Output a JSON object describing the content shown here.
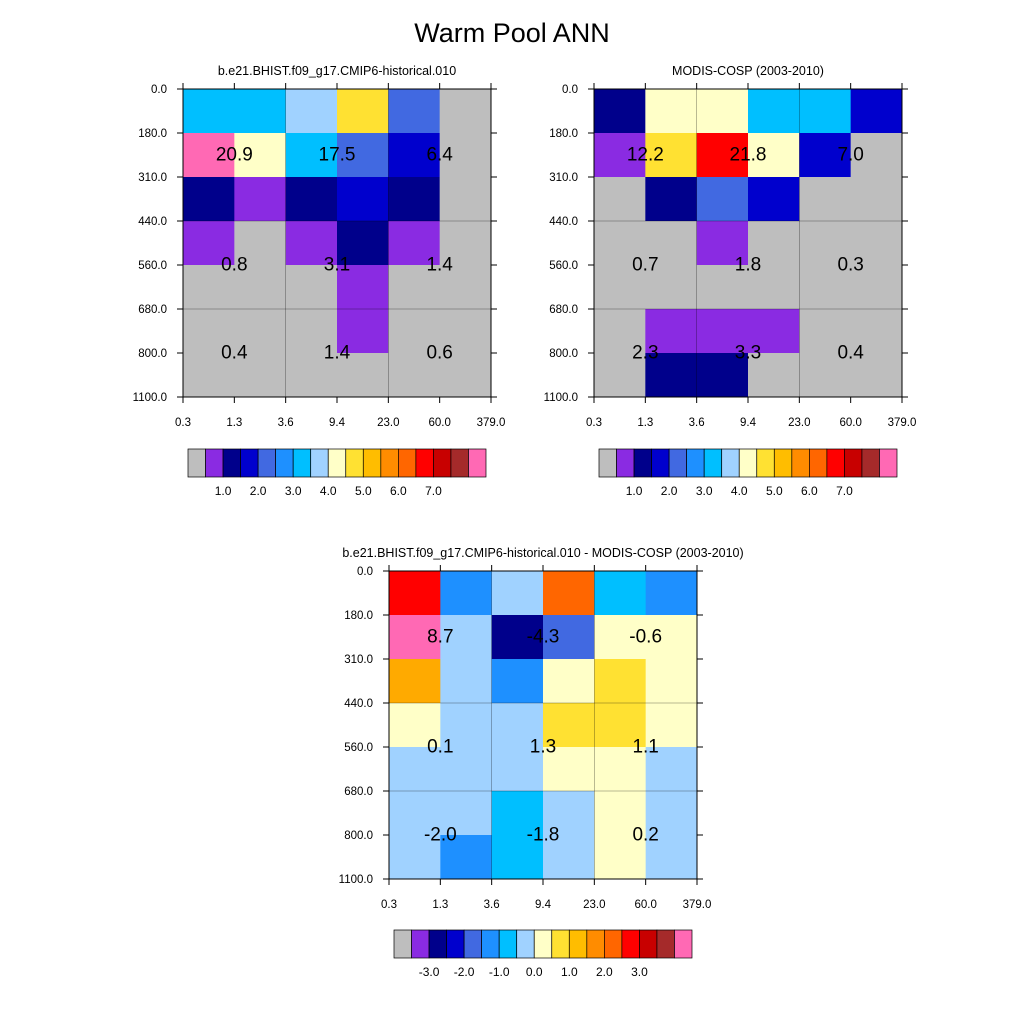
{
  "title": "Warm Pool ANN",
  "chart_data": [
    {
      "type": "heatmap",
      "title": "b.e21.BHIST.f09_g17.CMIP6-historical.010",
      "xlabel": "",
      "ylabel": "",
      "x_ticks": [
        "0.3",
        "1.3",
        "3.6",
        "9.4",
        "23.0",
        "60.0",
        "379.0"
      ],
      "y_ticks": [
        "0.0",
        "180.0",
        "310.0",
        "440.0",
        "560.0",
        "680.0",
        "800.0",
        "1100.0"
      ],
      "cell_colors": [
        [
          "#00bfff",
          "#00bfff",
          "#a0d2ff",
          "#ffe132",
          "#4169e1",
          "#bebebe"
        ],
        [
          "#ff69b4",
          "#ffffc8",
          "#00bfff",
          "#4169e1",
          "#0000cd",
          "#bebebe"
        ],
        [
          "#00008b",
          "#8a2be2",
          "#00008b",
          "#0000cd",
          "#00008b",
          "#bebebe"
        ],
        [
          "#8a2be2",
          "#bebebe",
          "#8a2be2",
          "#00008b",
          "#8a2be2",
          "#bebebe"
        ],
        [
          "#bebebe",
          "#bebebe",
          "#bebebe",
          "#8a2be2",
          "#bebebe",
          "#bebebe"
        ],
        [
          "#bebebe",
          "#bebebe",
          "#bebebe",
          "#8a2be2",
          "#bebebe",
          "#bebebe"
        ],
        [
          "#bebebe",
          "#bebebe",
          "#bebebe",
          "#bebebe",
          "#bebebe",
          "#bebebe"
        ]
      ],
      "cell_values": [
        {
          "value": "20.9",
          "col": 1,
          "row": 1.5
        },
        {
          "value": "17.5",
          "col": 3,
          "row": 1.5
        },
        {
          "value": "6.4",
          "col": 5,
          "row": 1.5
        },
        {
          "value": "0.8",
          "col": 1,
          "row": 4
        },
        {
          "value": "3.1",
          "col": 3,
          "row": 4
        },
        {
          "value": "1.4",
          "col": 5,
          "row": 4
        },
        {
          "value": "0.4",
          "col": 1,
          "row": 6
        },
        {
          "value": "1.4",
          "col": 3,
          "row": 6
        },
        {
          "value": "0.6",
          "col": 5,
          "row": 6
        }
      ],
      "colorbar": {
        "colors": [
          "#bebebe",
          "#8a2be2",
          "#00008b",
          "#0000cd",
          "#4169e1",
          "#1e90ff",
          "#00bfff",
          "#a0d2ff",
          "#ffffc8",
          "#ffe132",
          "#ffbd00",
          "#ff8c00",
          "#ff6600",
          "#ff0000",
          "#c80000",
          "#a52a2a",
          "#ff69b4"
        ],
        "labels": [
          {
            "text": "1.0",
            "boundary": 2
          },
          {
            "text": "2.0",
            "boundary": 4
          },
          {
            "text": "3.0",
            "boundary": 6
          },
          {
            "text": "4.0",
            "boundary": 8
          },
          {
            "text": "5.0",
            "boundary": 10
          },
          {
            "text": "6.0",
            "boundary": 12
          },
          {
            "text": "7.0",
            "boundary": 14
          }
        ]
      }
    },
    {
      "type": "heatmap",
      "title": "MODIS-COSP (2003-2010)",
      "xlabel": "",
      "ylabel": "",
      "x_ticks": [
        "0.3",
        "1.3",
        "3.6",
        "9.4",
        "23.0",
        "60.0",
        "379.0"
      ],
      "y_ticks": [
        "0.0",
        "180.0",
        "310.0",
        "440.0",
        "560.0",
        "680.0",
        "800.0",
        "1100.0"
      ],
      "cell_colors": [
        [
          "#00008b",
          "#ffffc8",
          "#ffffc8",
          "#00bfff",
          "#00bfff",
          "#0000cd"
        ],
        [
          "#8a2be2",
          "#ffe132",
          "#ff0000",
          "#ffffc8",
          "#0000cd",
          "#bebebe"
        ],
        [
          "#bebebe",
          "#00008b",
          "#4169e1",
          "#0000cd",
          "#bebebe",
          "#bebebe"
        ],
        [
          "#bebebe",
          "#bebebe",
          "#8a2be2",
          "#bebebe",
          "#bebebe",
          "#bebebe"
        ],
        [
          "#bebebe",
          "#bebebe",
          "#bebebe",
          "#bebebe",
          "#bebebe",
          "#bebebe"
        ],
        [
          "#bebebe",
          "#8a2be2",
          "#8a2be2",
          "#8a2be2",
          "#bebebe",
          "#bebebe"
        ],
        [
          "#bebebe",
          "#00008b",
          "#00008b",
          "#bebebe",
          "#bebebe",
          "#bebebe"
        ]
      ],
      "cell_values": [
        {
          "value": "12.2",
          "col": 1,
          "row": 1.5
        },
        {
          "value": "21.8",
          "col": 3,
          "row": 1.5
        },
        {
          "value": "7.0",
          "col": 5,
          "row": 1.5
        },
        {
          "value": "0.7",
          "col": 1,
          "row": 4
        },
        {
          "value": "1.8",
          "col": 3,
          "row": 4
        },
        {
          "value": "0.3",
          "col": 5,
          "row": 4
        },
        {
          "value": "2.3",
          "col": 1,
          "row": 6
        },
        {
          "value": "3.3",
          "col": 3,
          "row": 6
        },
        {
          "value": "0.4",
          "col": 5,
          "row": 6
        }
      ],
      "colorbar": {
        "colors": [
          "#bebebe",
          "#8a2be2",
          "#00008b",
          "#0000cd",
          "#4169e1",
          "#1e90ff",
          "#00bfff",
          "#a0d2ff",
          "#ffffc8",
          "#ffe132",
          "#ffbd00",
          "#ff8c00",
          "#ff6600",
          "#ff0000",
          "#c80000",
          "#a52a2a",
          "#ff69b4"
        ],
        "labels": [
          {
            "text": "1.0",
            "boundary": 2
          },
          {
            "text": "2.0",
            "boundary": 4
          },
          {
            "text": "3.0",
            "boundary": 6
          },
          {
            "text": "4.0",
            "boundary": 8
          },
          {
            "text": "5.0",
            "boundary": 10
          },
          {
            "text": "6.0",
            "boundary": 12
          },
          {
            "text": "7.0",
            "boundary": 14
          }
        ]
      }
    },
    {
      "type": "heatmap",
      "title": "b.e21.BHIST.f09_g17.CMIP6-historical.010 - MODIS-COSP (2003-2010)",
      "xlabel": "",
      "ylabel": "",
      "x_ticks": [
        "0.3",
        "1.3",
        "3.6",
        "9.4",
        "23.0",
        "60.0",
        "379.0"
      ],
      "y_ticks": [
        "0.0",
        "180.0",
        "310.0",
        "440.0",
        "560.0",
        "680.0",
        "800.0",
        "1100.0"
      ],
      "cell_colors": [
        [
          "#ff0000",
          "#1e90ff",
          "#a0d2ff",
          "#ff6600",
          "#00bfff",
          "#1e90ff"
        ],
        [
          "#ff69b4",
          "#a0d2ff",
          "#00008b",
          "#4169e1",
          "#ffffc8",
          "#ffffc8"
        ],
        [
          "#ffaa00",
          "#a0d2ff",
          "#1e90ff",
          "#ffffc8",
          "#ffe132",
          "#ffffc8"
        ],
        [
          "#ffffc8",
          "#a0d2ff",
          "#a0d2ff",
          "#ffe132",
          "#ffe132",
          "#ffffc8"
        ],
        [
          "#a0d2ff",
          "#a0d2ff",
          "#a0d2ff",
          "#ffffc8",
          "#ffffc8",
          "#a0d2ff"
        ],
        [
          "#a0d2ff",
          "#a0d2ff",
          "#00bfff",
          "#a0d2ff",
          "#ffffc8",
          "#a0d2ff"
        ],
        [
          "#a0d2ff",
          "#1e90ff",
          "#00bfff",
          "#a0d2ff",
          "#ffffc8",
          "#a0d2ff"
        ]
      ],
      "cell_values": [
        {
          "value": "8.7",
          "col": 1,
          "row": 1.5
        },
        {
          "value": "-4.3",
          "col": 3,
          "row": 1.5
        },
        {
          "value": "-0.6",
          "col": 5,
          "row": 1.5
        },
        {
          "value": "0.1",
          "col": 1,
          "row": 4
        },
        {
          "value": "1.3",
          "col": 3,
          "row": 4
        },
        {
          "value": "1.1",
          "col": 5,
          "row": 4
        },
        {
          "value": "-2.0",
          "col": 1,
          "row": 6
        },
        {
          "value": "-1.8",
          "col": 3,
          "row": 6
        },
        {
          "value": "0.2",
          "col": 5,
          "row": 6
        }
      ],
      "colorbar": {
        "colors": [
          "#bebebe",
          "#8a2be2",
          "#00008b",
          "#0000cd",
          "#4169e1",
          "#1e90ff",
          "#00bfff",
          "#a0d2ff",
          "#ffffc8",
          "#ffe132",
          "#ffbd00",
          "#ff8c00",
          "#ff6600",
          "#ff0000",
          "#c80000",
          "#a52a2a",
          "#ff69b4"
        ],
        "labels": [
          {
            "text": "-3.0",
            "boundary": 2
          },
          {
            "text": "-2.0",
            "boundary": 4
          },
          {
            "text": "-1.0",
            "boundary": 6
          },
          {
            "text": "0.0",
            "boundary": 8
          },
          {
            "text": "1.0",
            "boundary": 10
          },
          {
            "text": "2.0",
            "boundary": 12
          },
          {
            "text": "3.0",
            "boundary": 14
          }
        ]
      }
    }
  ]
}
